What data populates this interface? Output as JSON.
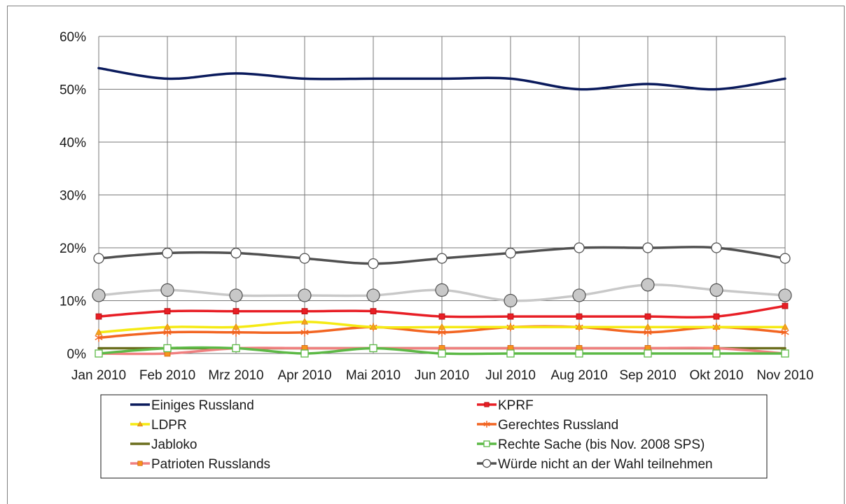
{
  "chart_data": {
    "type": "line",
    "categories": [
      "Jan 2010",
      "Feb 2010",
      "Mrz 2010",
      "Apr 2010",
      "Mai 2010",
      "Jun 2010",
      "Jul 2010",
      "Aug 2010",
      "Sep 2010",
      "Okt 2010",
      "Nov 2010"
    ],
    "ylim": [
      0,
      60
    ],
    "yticks": [
      "0%",
      "10%",
      "20%",
      "30%",
      "40%",
      "50%",
      "60%"
    ],
    "grid": true,
    "legend_position": "bottom",
    "series": [
      {
        "name": "Einiges Russland",
        "color": "#0a1a5c",
        "marker": "none",
        "values": [
          54,
          52,
          53,
          52,
          52,
          52,
          52,
          50,
          51,
          50,
          52
        ]
      },
      {
        "name": "KPRF",
        "color": "#e81e25",
        "marker": "square",
        "values": [
          7,
          8,
          8,
          8,
          8,
          7,
          7,
          7,
          7,
          7,
          9
        ]
      },
      {
        "name": "LDPR",
        "color": "#f5ea14",
        "marker": "triangle",
        "values": [
          4,
          5,
          5,
          6,
          5,
          5,
          5,
          5,
          5,
          5,
          5
        ]
      },
      {
        "name": "Gerechtes Russland",
        "color": "#f26522",
        "marker": "star",
        "values": [
          3,
          4,
          4,
          4,
          5,
          4,
          5,
          5,
          4,
          5,
          4
        ]
      },
      {
        "name": "Jabloko",
        "color": "#6b6e1e",
        "marker": "none",
        "values": [
          1,
          1,
          1,
          1,
          1,
          1,
          1,
          1,
          1,
          1,
          1
        ]
      },
      {
        "name": "Rechte Sache (bis Nov. 2008 SPS)",
        "color": "#5cb946",
        "marker": "open-square",
        "values": [
          0,
          1,
          1,
          0,
          1,
          0,
          0,
          0,
          0,
          0,
          0
        ]
      },
      {
        "name": "Patrioten Russlands",
        "color": "#f08080",
        "marker": "square-orange",
        "values": [
          0,
          0,
          1,
          1,
          1,
          1,
          1,
          1,
          1,
          1,
          0
        ]
      },
      {
        "name": "Würde nicht an der Wahl teilnehmen",
        "color": "#505050",
        "marker": "open-circle",
        "values": [
          18,
          19,
          19,
          18,
          17,
          18,
          19,
          20,
          20,
          20,
          18
        ]
      },
      {
        "name": "",
        "color": "#c8c8c8",
        "marker": "filled-circle",
        "values": [
          11,
          12,
          11,
          11,
          11,
          12,
          10,
          11,
          13,
          12,
          11
        ]
      }
    ]
  }
}
